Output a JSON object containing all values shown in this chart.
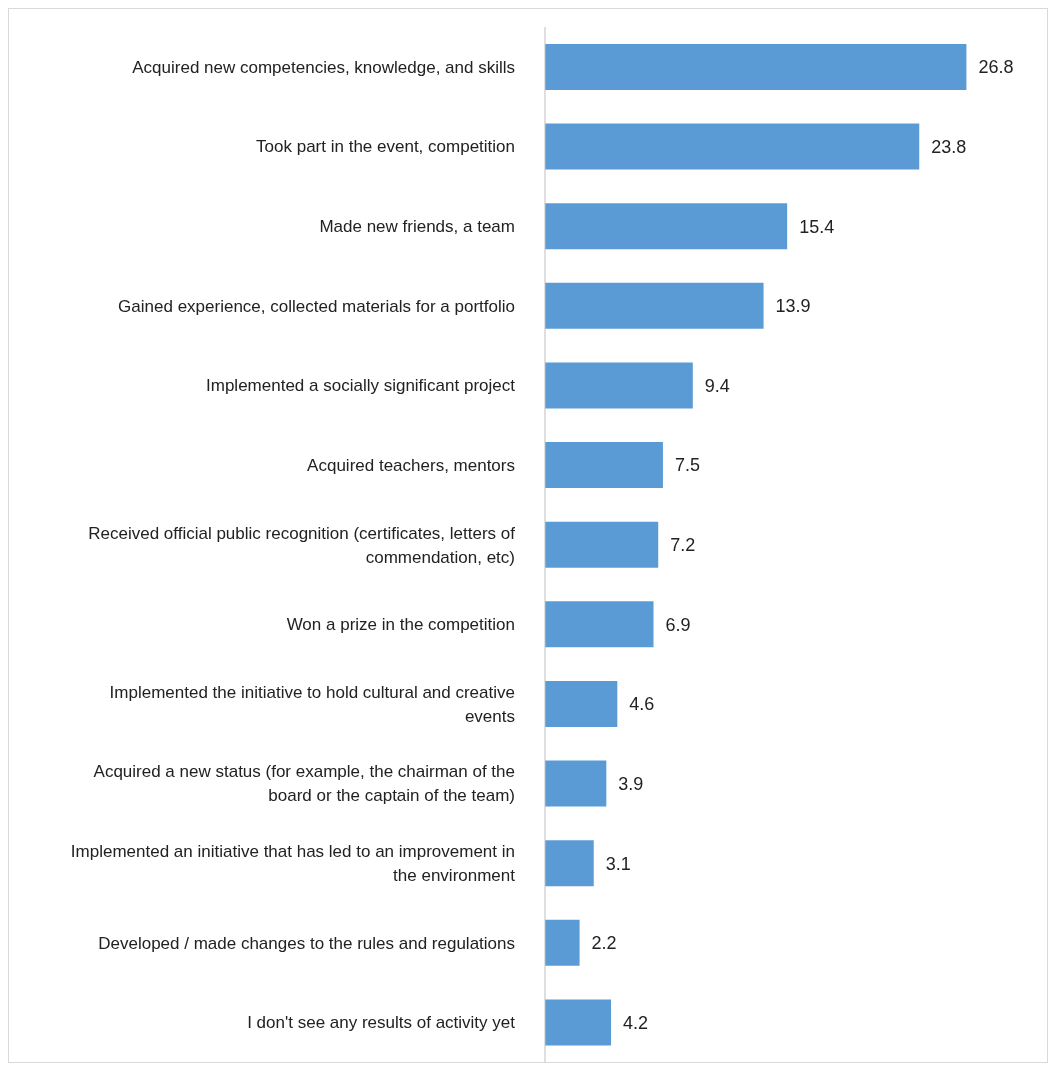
{
  "chart_data": {
    "type": "bar",
    "orientation": "horizontal",
    "categories": [
      "Acquired new competencies, knowledge, and skills",
      "Took part in the event, competition",
      "Made new friends, a team",
      "Gained experience, collected materials for a portfolio",
      "Implemented a socially significant project",
      "Acquired teachers, mentors",
      "Received official public recognition (certificates, letters of commendation, etc)",
      "Won a prize in the competition",
      "Implemented the initiative to hold cultural and creative events",
      "Acquired a new status (for example, the chairman of the board or the captain of the team)",
      "Implemented an initiative that has led to an improvement in the environment",
      "Developed / made changes to the rules and regulations",
      "I don't see any results of activity yet"
    ],
    "values": [
      26.8,
      23.8,
      15.4,
      13.9,
      9.4,
      7.5,
      7.2,
      6.9,
      4.6,
      3.9,
      3.1,
      2.2,
      4.2
    ],
    "color": "#5b9bd5",
    "data_labels": true
  }
}
